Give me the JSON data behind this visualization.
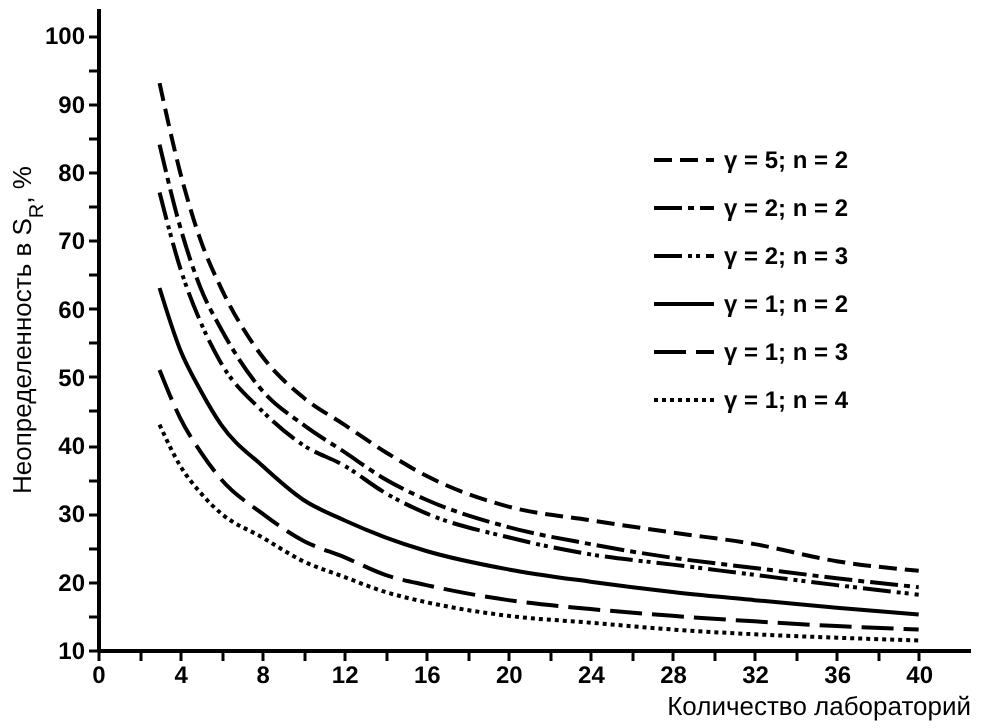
{
  "chart_data": {
    "type": "line",
    "xlabel": "Количество лабораторий",
    "ylabel": "Неопределенность в S$_{R}$, %",
    "x": [
      3,
      4,
      5,
      6,
      8,
      10,
      12,
      14,
      16,
      20,
      24,
      28,
      32,
      36,
      40
    ],
    "xlim": [
      0,
      42.5
    ],
    "ylim": [
      10,
      104
    ],
    "xticks": [
      0,
      {
        "value": 2,
        "label": null
      },
      4,
      {
        "value": 6,
        "label": null
      },
      8,
      {
        "value": 10,
        "label": null
      },
      12,
      {
        "value": 14,
        "label": null
      },
      16,
      {
        "value": 18,
        "label": null
      },
      20,
      {
        "value": 22,
        "label": null
      },
      24,
      {
        "value": 26,
        "label": null
      },
      28,
      {
        "value": 30,
        "label": null
      },
      32,
      {
        "value": 34,
        "label": null
      },
      36,
      {
        "value": 38,
        "label": null
      },
      40
    ],
    "yticks": [
      10,
      {
        "value": 15,
        "label": null
      },
      20,
      {
        "value": 25,
        "label": null
      },
      30,
      {
        "value": 35,
        "label": null
      },
      40,
      {
        "value": 45,
        "label": null
      },
      50,
      {
        "value": 55,
        "label": null
      },
      60,
      {
        "value": 65,
        "label": null
      },
      70,
      {
        "value": 75,
        "label": null
      },
      80,
      {
        "value": 85,
        "label": null
      },
      90,
      {
        "value": 95,
        "label": null
      },
      100
    ],
    "grid": false,
    "legend": "top right",
    "marker": "none",
    "series": [
      {
        "name": "γ = 5; n = 2",
        "color": "#000000",
        "line_style": "dashed",
        "values": [
          93,
          80,
          70,
          63,
          53,
          47,
          43,
          39,
          35.5,
          31,
          29,
          27.2,
          25.5,
          23,
          21.6
        ]
      },
      {
        "name": "γ = 2; n = 2",
        "color": "#000000",
        "line_style": "dashdot",
        "values": [
          84,
          72,
          63,
          57,
          48,
          43,
          39,
          35,
          32,
          28,
          25.5,
          23.5,
          22,
          20.5,
          19.2
        ]
      },
      {
        "name": "γ = 2; n = 3",
        "color": "#000000",
        "line_style": "dashdotdot",
        "values": [
          77,
          66,
          58,
          52,
          45,
          40,
          37,
          33,
          30,
          26.5,
          24,
          22.5,
          21,
          19.5,
          18.1
        ]
      },
      {
        "name": "γ = 1; n = 2",
        "color": "#000000",
        "line_style": "solid",
        "values": [
          63,
          54,
          48,
          43,
          37,
          32,
          29,
          26.5,
          24.5,
          21.8,
          20,
          18.5,
          17.3,
          16.2,
          15.2
        ]
      },
      {
        "name": "γ = 1; n = 3",
        "color": "#000000",
        "line_style": "longdash",
        "values": [
          51,
          44,
          39,
          35,
          30,
          26,
          23.6,
          21,
          19.5,
          17.3,
          16,
          15,
          14.2,
          13.5,
          13
        ]
      },
      {
        "name": "γ = 1; n = 4",
        "color": "#000000",
        "line_style": "dotted",
        "values": [
          43,
          37,
          33,
          30,
          26.5,
          23,
          20.7,
          18.5,
          17,
          15,
          14,
          13,
          12.3,
          11.8,
          11.4
        ]
      }
    ]
  }
}
